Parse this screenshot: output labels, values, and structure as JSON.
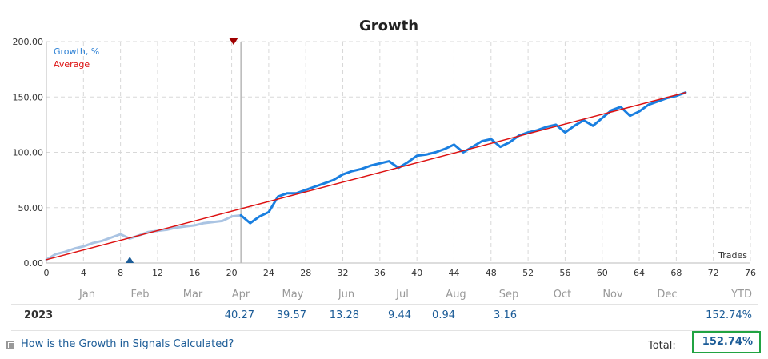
{
  "chart_data": {
    "type": "line",
    "title": "Growth",
    "xlabel": "Trades",
    "ylabel": "",
    "xlim": [
      0,
      76
    ],
    "ylim": [
      0,
      200
    ],
    "x_ticks": [
      "0",
      "4",
      "8",
      "12",
      "16",
      "20",
      "24",
      "28",
      "32",
      "36",
      "40",
      "44",
      "48",
      "52",
      "56",
      "60",
      "64",
      "68",
      "72",
      "76"
    ],
    "y_ticks": [
      "0.00",
      "50.00",
      "100.00",
      "150.00",
      "200.00"
    ],
    "grid": true,
    "legend_position": "top-left",
    "series": [
      {
        "name": "Growth, %",
        "color": "#1a7fe0",
        "x": [
          0,
          1,
          2,
          3,
          4,
          5,
          6,
          7,
          8,
          9,
          10,
          11,
          12,
          13,
          14,
          15,
          16,
          17,
          18,
          19,
          20,
          21
        ],
        "y": [
          3,
          8,
          10,
          13,
          15,
          18,
          20,
          23,
          26,
          22,
          25,
          28,
          29,
          30,
          32,
          33,
          34,
          36,
          37,
          38,
          42,
          43
        ],
        "style": "faded"
      },
      {
        "name": "",
        "color": "#1a7fe0",
        "x": [
          21,
          22,
          23,
          24,
          25,
          26,
          27,
          28,
          29,
          30,
          31,
          32,
          33,
          34,
          35,
          36,
          37,
          38,
          39,
          40,
          41,
          42,
          43,
          44,
          45,
          46,
          47,
          48,
          49,
          50,
          51,
          52,
          53,
          54,
          55,
          56,
          57,
          58,
          59,
          60,
          61,
          62,
          63,
          64,
          65,
          66,
          67,
          68,
          69
        ],
        "y": [
          43,
          36,
          42,
          46,
          60,
          63,
          63,
          66,
          69,
          72,
          75,
          80,
          83,
          85,
          88,
          90,
          92,
          86,
          91,
          97,
          98,
          100,
          103,
          107,
          100,
          105,
          110,
          112,
          105,
          109,
          115,
          118,
          120,
          123,
          125,
          118,
          124,
          129,
          124,
          131,
          138,
          141,
          133,
          137,
          143,
          146,
          149,
          151,
          154
        ]
      },
      {
        "name": "Average",
        "color": "#dd1111",
        "x": [
          0,
          69
        ],
        "y": [
          3,
          154
        ]
      }
    ],
    "markers": [
      {
        "type": "down",
        "x": 20.2,
        "y": 200,
        "color": "#a00000"
      },
      {
        "type": "up",
        "x": 9,
        "y": 0,
        "color": "#1c5c97"
      }
    ],
    "cursor_x": 21
  },
  "table": {
    "months": [
      "Jan",
      "Feb",
      "Mar",
      "Apr",
      "May",
      "Jun",
      "Jul",
      "Aug",
      "Sep",
      "Oct",
      "Nov",
      "Dec"
    ],
    "ytd_label": "YTD",
    "year": "2023",
    "values": [
      "",
      "",
      "",
      "40.27",
      "39.57",
      "13.28",
      "9.44",
      "0.94",
      "3.16",
      "",
      "",
      ""
    ],
    "ytd_value": "152.74%",
    "total_label": "Total:",
    "total_value": "152.74%",
    "link_text": "How is the Growth in Signals Calculated?"
  }
}
